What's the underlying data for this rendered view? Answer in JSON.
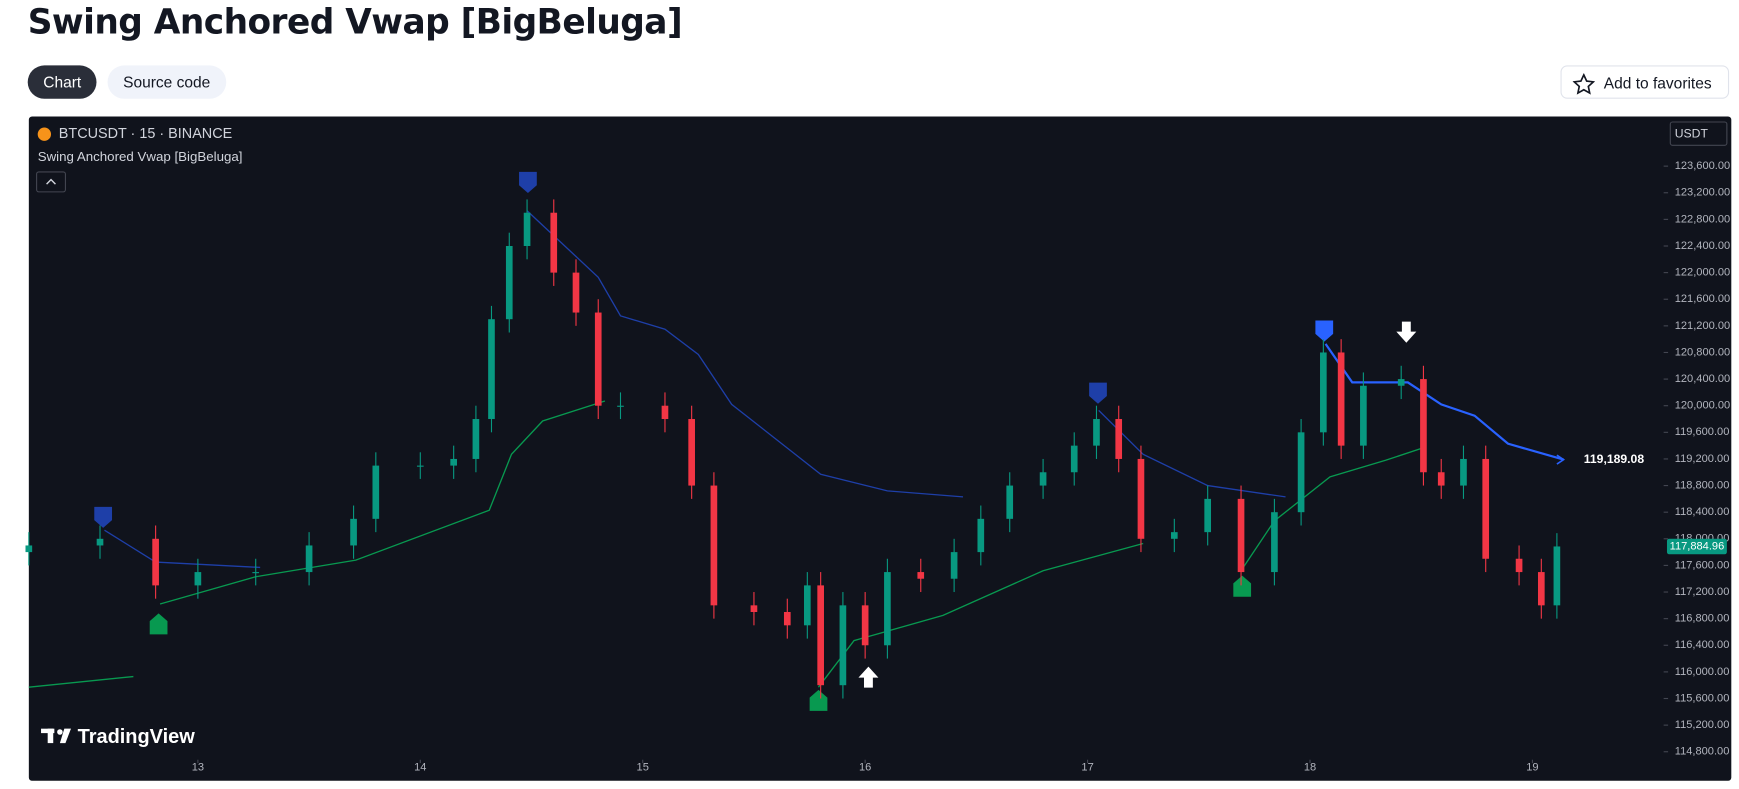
{
  "header": {
    "title": "Swing Anchored Vwap [BigBeluga]",
    "tabs": [
      "Chart",
      "Source code"
    ],
    "favorites": "Add to favorites"
  },
  "chart_data": {
    "type": "candlestick",
    "symbol": "BTCUSDT · 15 · BINANCE",
    "indicator": "Swing Anchored Vwap [BigBeluga]",
    "currency": "USDT",
    "watermark": "TradingView",
    "up_color": "#089981",
    "down_color": "#f23645",
    "x": [
      12.24,
      12.56,
      12.81,
      13.0,
      13.26,
      13.5,
      13.7,
      13.8,
      14.0,
      14.15,
      14.25,
      14.32,
      14.4,
      14.48,
      14.6,
      14.7,
      14.8,
      14.9,
      15.1,
      15.22,
      15.32,
      15.5,
      15.65,
      15.74,
      15.8,
      15.9,
      16.0,
      16.1,
      16.25,
      16.4,
      16.52,
      16.65,
      16.8,
      16.94,
      17.04,
      17.14,
      17.24,
      17.39,
      17.54,
      17.69,
      17.84,
      17.96,
      18.06,
      18.14,
      18.24,
      18.41,
      18.51,
      18.59,
      18.69,
      18.79,
      18.94,
      19.04,
      19.11
    ],
    "open": [
      117800,
      117900,
      118000,
      117300,
      117500,
      117500,
      117900,
      118300,
      119100,
      119100,
      119200,
      119800,
      121300,
      122400,
      122900,
      122000,
      121400,
      120000,
      120000,
      119800,
      118800,
      117000,
      116900,
      116700,
      117300,
      115800,
      117000,
      116400,
      117500,
      117400,
      117800,
      118300,
      118800,
      119000,
      119400,
      119800,
      119200,
      118000,
      118100,
      118600,
      117500,
      118400,
      119600,
      120800,
      119400,
      120300,
      120400,
      119000,
      118800,
      119200,
      117700,
      117500,
      117000
    ],
    "high": [
      118100,
      118200,
      118200,
      117700,
      117700,
      118100,
      118500,
      119300,
      119300,
      119400,
      120000,
      121500,
      122600,
      123100,
      123100,
      122200,
      121600,
      120200,
      120200,
      120000,
      119000,
      117200,
      117100,
      117500,
      117500,
      117200,
      117200,
      117700,
      117700,
      118000,
      118500,
      119000,
      119200,
      119600,
      120000,
      120000,
      119400,
      118300,
      118800,
      118800,
      118600,
      119800,
      121000,
      121000,
      120500,
      120600,
      120600,
      119200,
      119400,
      119400,
      117900,
      117700,
      118085
    ],
    "low": [
      117600,
      117700,
      117100,
      117100,
      117300,
      117300,
      117700,
      118100,
      118900,
      118900,
      119000,
      119600,
      121100,
      122200,
      121800,
      121200,
      119800,
      119800,
      119600,
      118600,
      116800,
      116700,
      116500,
      116500,
      115600,
      115600,
      116200,
      116200,
      117200,
      117200,
      117600,
      118100,
      118600,
      118800,
      119200,
      119000,
      117800,
      117800,
      117900,
      117300,
      117300,
      118200,
      119400,
      119200,
      119200,
      120100,
      118800,
      118600,
      118600,
      117500,
      117300,
      116800,
      116800
    ],
    "close": [
      117900,
      118000,
      117300,
      117500,
      117500,
      117900,
      118300,
      119100,
      119100,
      119200,
      119800,
      121300,
      122400,
      122900,
      122000,
      121400,
      120000,
      120000,
      119800,
      118800,
      117000,
      116900,
      116700,
      117300,
      115800,
      117000,
      116400,
      117500,
      117400,
      117800,
      118300,
      118800,
      119000,
      119400,
      119800,
      119200,
      118000,
      118100,
      118600,
      117500,
      118400,
      119600,
      120800,
      119400,
      120300,
      120400,
      119000,
      118800,
      119200,
      117700,
      117500,
      117000,
      117885
    ],
    "lines": [
      {
        "color": "#1e3fa8",
        "x": [
          12.58,
          12.81,
          13.28
        ],
        "values": [
          118130,
          117650,
          117570
        ]
      },
      {
        "color": "#1e3fa8",
        "x": [
          14.48,
          14.8,
          14.9,
          15.1,
          15.25,
          15.4,
          15.8,
          16.1,
          16.44
        ],
        "values": [
          122930,
          121930,
          121350,
          121150,
          120770,
          120020,
          118970,
          118720,
          118630
        ]
      },
      {
        "color": "#1e3fa8",
        "x": [
          17.05,
          17.25,
          17.54,
          17.89
        ],
        "values": [
          119930,
          119270,
          118800,
          118630
        ]
      },
      {
        "color": "#2962ff",
        "x": [
          18.07,
          18.19,
          18.44,
          18.59,
          18.74,
          18.89,
          19.14
        ],
        "values": [
          120930,
          120350,
          120350,
          120020,
          119850,
          119430,
          119190
        ]
      },
      {
        "color": "#089950",
        "x": [
          12.24,
          12.71
        ],
        "values": [
          115770,
          115930
        ]
      },
      {
        "color": "#089950",
        "x": [
          12.83,
          13.26,
          13.71,
          14.31,
          14.41,
          14.55,
          14.83
        ],
        "values": [
          117020,
          117430,
          117680,
          118430,
          119270,
          119770,
          120070
        ]
      },
      {
        "color": "#089950",
        "x": [
          15.79,
          15.95,
          16.35,
          16.8,
          17.25
        ],
        "values": [
          115770,
          116470,
          116850,
          117520,
          117930
        ]
      },
      {
        "color": "#089950",
        "x": [
          17.69,
          17.84,
          18.09,
          18.34,
          18.52
        ],
        "values": [
          117520,
          118270,
          118930,
          119180,
          119380
        ]
      }
    ],
    "xlim": [
      12.24,
      19.59
    ],
    "xticks": [
      13,
      14,
      15,
      16,
      17,
      18,
      19
    ],
    "ylim": [
      114380,
      124330
    ],
    "yticks": [
      {
        "value": 123600,
        "label": "123,600.00"
      },
      {
        "value": 123200,
        "label": "123,200.00"
      },
      {
        "value": 122800,
        "label": "122,800.00"
      },
      {
        "value": 122400,
        "label": "122,400.00"
      },
      {
        "value": 122000,
        "label": "122,000.00"
      },
      {
        "value": 121600,
        "label": "121,600.00"
      },
      {
        "value": 121200,
        "label": "121,200.00"
      },
      {
        "value": 120800,
        "label": "120,800.00"
      },
      {
        "value": 120400,
        "label": "120,400.00"
      },
      {
        "value": 120000,
        "label": "120,000.00"
      },
      {
        "value": 119600,
        "label": "119,600.00"
      },
      {
        "value": 119200,
        "label": "119,200.00"
      },
      {
        "value": 118800,
        "label": "118,800.00"
      },
      {
        "value": 118400,
        "label": "118,400.00"
      },
      {
        "value": 118000,
        "label": "118,000.00"
      },
      {
        "value": 117600,
        "label": "117,600.00"
      },
      {
        "value": 117200,
        "label": "117,200.00"
      },
      {
        "value": 116800,
        "label": "116,800.00"
      },
      {
        "value": 116400,
        "label": "116,400.00"
      },
      {
        "value": 116000,
        "label": "116,000.00"
      },
      {
        "value": 115600,
        "label": "115,600.00"
      },
      {
        "value": 115200,
        "label": "115,200.00"
      },
      {
        "value": 114800,
        "label": "114,800.00"
      }
    ],
    "last_price": {
      "value": 117884.96,
      "label": "117,884.96"
    },
    "vwap_last": {
      "value": 119189.08,
      "label": "119,189.08"
    }
  }
}
